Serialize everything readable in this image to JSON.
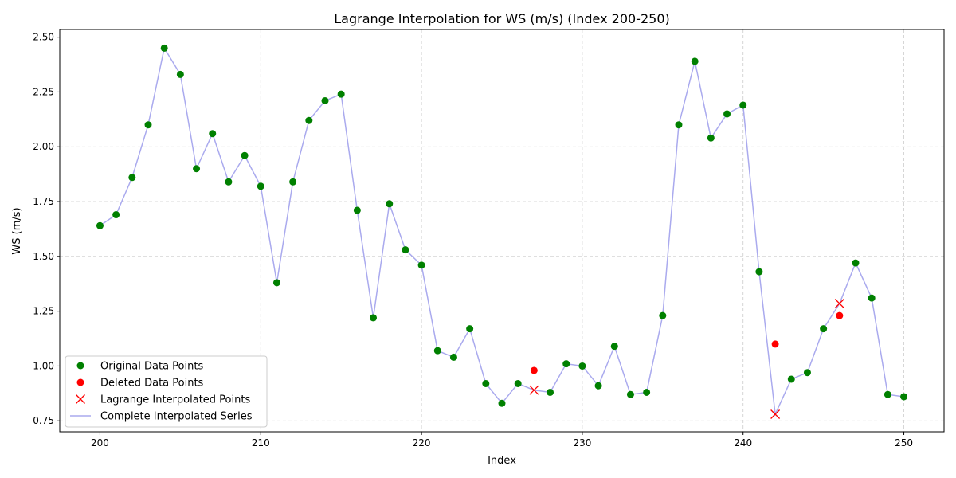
{
  "chart_data": {
    "type": "line",
    "title": "Lagrange Interpolation for WS (m/s) (Index 200-250)",
    "xlabel": "Index",
    "ylabel": "WS (m/s)",
    "xlim": [
      197.5,
      252.5
    ],
    "ylim": [
      0.7,
      2.535
    ],
    "xticks": [
      200,
      210,
      220,
      230,
      240,
      250
    ],
    "yticks": [
      0.75,
      1.0,
      1.25,
      1.5,
      1.75,
      2.0,
      2.25,
      2.5
    ],
    "ytick_labels": [
      "0.75",
      "1.00",
      "1.25",
      "1.50",
      "1.75",
      "2.00",
      "2.25",
      "2.50"
    ],
    "grid": true,
    "legend_position": "lower-left",
    "colors": {
      "original": "#008000",
      "deleted": "#ff0000",
      "interpolated": "#ff0000",
      "series": "#aaaaee"
    },
    "series": [
      {
        "name": "Original Data Points",
        "kind": "points",
        "x": [
          200,
          201,
          202,
          203,
          204,
          205,
          206,
          207,
          208,
          209,
          210,
          211,
          212,
          213,
          214,
          215,
          216,
          217,
          218,
          219,
          220,
          221,
          222,
          223,
          224,
          225,
          226,
          228,
          229,
          230,
          231,
          232,
          233,
          234,
          235,
          236,
          237,
          238,
          239,
          240,
          241,
          243,
          244,
          245,
          247,
          248,
          249,
          250
        ],
        "y": [
          1.64,
          1.69,
          1.86,
          2.1,
          2.45,
          2.33,
          1.9,
          2.06,
          1.84,
          1.96,
          1.82,
          1.38,
          1.84,
          2.12,
          2.21,
          2.24,
          1.71,
          1.22,
          1.74,
          1.53,
          1.46,
          1.07,
          1.04,
          1.17,
          0.92,
          0.83,
          0.92,
          0.88,
          1.01,
          1.0,
          0.91,
          1.09,
          0.87,
          0.88,
          1.23,
          2.1,
          2.39,
          2.04,
          2.15,
          2.19,
          1.43,
          0.94,
          0.97,
          1.17,
          1.47,
          1.31,
          0.87,
          0.86
        ]
      },
      {
        "name": "Deleted Data Points",
        "kind": "points",
        "x": [
          227,
          242,
          246
        ],
        "y": [
          0.98,
          1.1,
          1.23
        ]
      },
      {
        "name": "Lagrange Interpolated Points",
        "kind": "markers",
        "x": [
          227,
          242,
          246
        ],
        "y": [
          0.89,
          0.78,
          1.285
        ]
      },
      {
        "name": "Complete Interpolated Series",
        "kind": "line",
        "x": [
          200,
          201,
          202,
          203,
          204,
          205,
          206,
          207,
          208,
          209,
          210,
          211,
          212,
          213,
          214,
          215,
          216,
          217,
          218,
          219,
          220,
          221,
          222,
          223,
          224,
          225,
          226,
          227,
          228,
          229,
          230,
          231,
          232,
          233,
          234,
          235,
          236,
          237,
          238,
          239,
          240,
          241,
          242,
          243,
          244,
          245,
          246,
          247,
          248,
          249,
          250
        ],
        "y": [
          1.64,
          1.69,
          1.86,
          2.1,
          2.45,
          2.33,
          1.9,
          2.06,
          1.84,
          1.96,
          1.82,
          1.38,
          1.84,
          2.12,
          2.21,
          2.24,
          1.71,
          1.22,
          1.74,
          1.53,
          1.46,
          1.07,
          1.04,
          1.17,
          0.92,
          0.83,
          0.92,
          0.89,
          0.88,
          1.01,
          1.0,
          0.91,
          1.09,
          0.87,
          0.88,
          1.23,
          2.1,
          2.39,
          2.04,
          2.15,
          2.19,
          1.43,
          0.78,
          0.94,
          0.97,
          1.17,
          1.285,
          1.47,
          1.31,
          0.87,
          0.86
        ]
      }
    ]
  }
}
